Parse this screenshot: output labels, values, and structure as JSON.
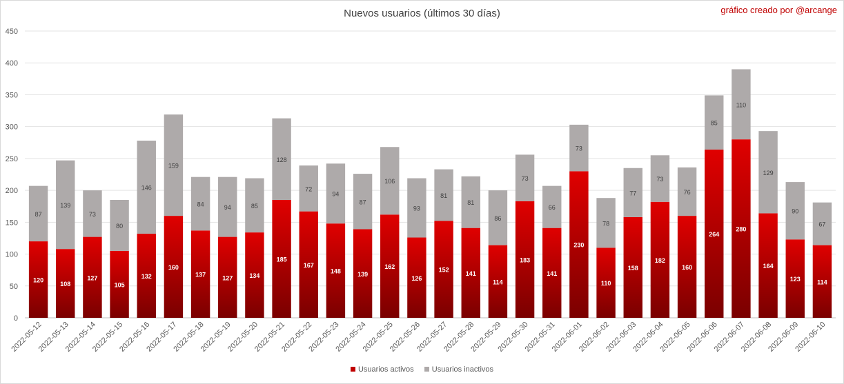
{
  "chart_data": {
    "type": "bar",
    "stacked": true,
    "title": "Nuevos usuarios (últimos 30 días)",
    "credit": "gráfico creado por @arcange",
    "categories": [
      "2022-05-12",
      "2022-05-13",
      "2022-05-14",
      "2022-05-15",
      "2022-05-16",
      "2022-05-17",
      "2022-05-18",
      "2022-05-19",
      "2022-05-20",
      "2022-05-21",
      "2022-05-22",
      "2022-05-23",
      "2022-05-24",
      "2022-05-25",
      "2022-05-26",
      "2022-05-27",
      "2022-05-28",
      "2022-05-29",
      "2022-05-30",
      "2022-05-31",
      "2022-06-01",
      "2022-06-02",
      "2022-06-03",
      "2022-06-04",
      "2022-06-05",
      "2022-06-06",
      "2022-06-07",
      "2022-06-08",
      "2022-06-09",
      "2022-06-10"
    ],
    "series": [
      {
        "name": "Usuarios activos",
        "color": "#c00000",
        "values": [
          120,
          108,
          127,
          105,
          132,
          160,
          137,
          127,
          134,
          185,
          167,
          148,
          139,
          162,
          126,
          152,
          141,
          114,
          183,
          141,
          230,
          110,
          158,
          182,
          160,
          264,
          280,
          164,
          123,
          114
        ]
      },
      {
        "name": "Usuarios inactivos",
        "color": "#aeaaaa",
        "values": [
          87,
          139,
          73,
          80,
          146,
          159,
          84,
          94,
          85,
          128,
          72,
          94,
          87,
          106,
          93,
          81,
          81,
          86,
          73,
          66,
          73,
          78,
          77,
          73,
          76,
          85,
          110,
          129,
          90,
          67
        ]
      }
    ],
    "ylim": [
      0,
      450
    ],
    "yticks": [
      0,
      50,
      100,
      150,
      200,
      250,
      300,
      350,
      400,
      450
    ],
    "grid": true,
    "legend_position": "bottom"
  }
}
